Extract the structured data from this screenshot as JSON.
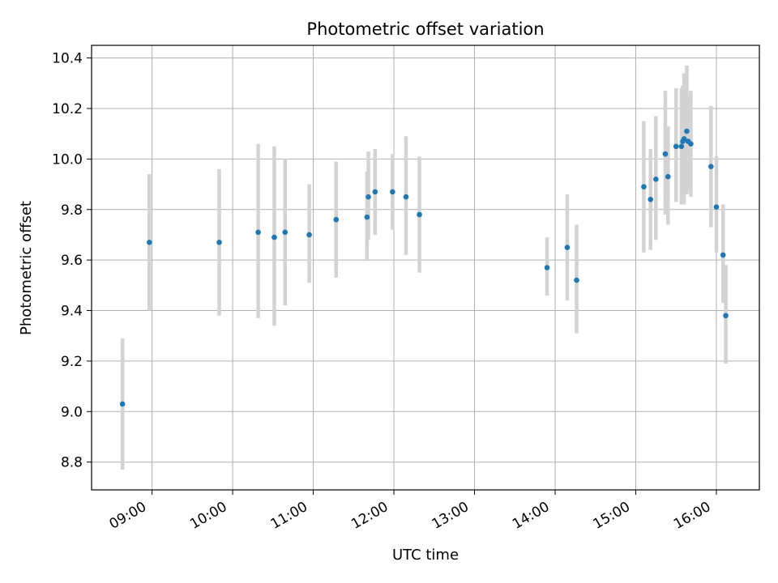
{
  "chart_data": {
    "type": "scatter",
    "title": "Photometric offset variation",
    "xlabel": "UTC time",
    "ylabel": "Photometric offset",
    "x_axis": "time",
    "xlim": [
      "08:15",
      "16:32"
    ],
    "ylim": [
      8.69,
      10.45
    ],
    "x_ticks": [
      "09:00",
      "10:00",
      "11:00",
      "12:00",
      "13:00",
      "14:00",
      "15:00",
      "16:00"
    ],
    "y_ticks": [
      8.8,
      9.0,
      9.2,
      9.4,
      9.6,
      9.8,
      10.0,
      10.2,
      10.4
    ],
    "grid": true,
    "marker_color": "#1f77b4",
    "errorbar_color": "#d3d3d3",
    "points": [
      {
        "x": "08:38",
        "y": 9.03,
        "ylow": 8.77,
        "yhigh": 9.29
      },
      {
        "x": "08:58",
        "y": 9.67,
        "ylow": 9.4,
        "yhigh": 9.94
      },
      {
        "x": "09:50",
        "y": 9.67,
        "ylow": 9.38,
        "yhigh": 9.96
      },
      {
        "x": "10:19",
        "y": 9.71,
        "ylow": 9.37,
        "yhigh": 10.06
      },
      {
        "x": "10:31",
        "y": 9.69,
        "ylow": 9.34,
        "yhigh": 10.05
      },
      {
        "x": "10:39",
        "y": 9.71,
        "ylow": 9.42,
        "yhigh": 10.0
      },
      {
        "x": "10:57",
        "y": 9.7,
        "ylow": 9.51,
        "yhigh": 9.9
      },
      {
        "x": "11:17",
        "y": 9.76,
        "ylow": 9.53,
        "yhigh": 9.99
      },
      {
        "x": "11:40",
        "y": 9.77,
        "ylow": 9.6,
        "yhigh": 9.95
      },
      {
        "x": "11:41",
        "y": 9.85,
        "ylow": 9.68,
        "yhigh": 10.03
      },
      {
        "x": "11:46",
        "y": 9.87,
        "ylow": 9.7,
        "yhigh": 10.04
      },
      {
        "x": "11:59",
        "y": 9.87,
        "ylow": 9.72,
        "yhigh": 10.02
      },
      {
        "x": "12:09",
        "y": 9.85,
        "ylow": 9.62,
        "yhigh": 10.09
      },
      {
        "x": "12:19",
        "y": 9.78,
        "ylow": 9.55,
        "yhigh": 10.01
      },
      {
        "x": "13:54",
        "y": 9.57,
        "ylow": 9.46,
        "yhigh": 9.69
      },
      {
        "x": "14:09",
        "y": 9.65,
        "ylow": 9.44,
        "yhigh": 9.86
      },
      {
        "x": "14:16",
        "y": 9.52,
        "ylow": 9.31,
        "yhigh": 9.74
      },
      {
        "x": "15:06",
        "y": 9.89,
        "ylow": 9.63,
        "yhigh": 10.15
      },
      {
        "x": "15:11",
        "y": 9.84,
        "ylow": 9.64,
        "yhigh": 10.04
      },
      {
        "x": "15:15",
        "y": 9.92,
        "ylow": 9.68,
        "yhigh": 10.17
      },
      {
        "x": "15:22",
        "y": 10.02,
        "ylow": 9.78,
        "yhigh": 10.27
      },
      {
        "x": "15:24",
        "y": 9.93,
        "ylow": 9.74,
        "yhigh": 10.13
      },
      {
        "x": "15:30",
        "y": 10.05,
        "ylow": 9.83,
        "yhigh": 10.28
      },
      {
        "x": "15:34",
        "y": 10.05,
        "ylow": 9.82,
        "yhigh": 10.28
      },
      {
        "x": "15:35",
        "y": 10.07,
        "ylow": 9.86,
        "yhigh": 10.29
      },
      {
        "x": "15:36",
        "y": 10.08,
        "ylow": 9.82,
        "yhigh": 10.34
      },
      {
        "x": "15:38",
        "y": 10.11,
        "ylow": 9.86,
        "yhigh": 10.37
      },
      {
        "x": "15:39",
        "y": 10.07,
        "ylow": 9.88,
        "yhigh": 10.25
      },
      {
        "x": "15:41",
        "y": 10.06,
        "ylow": 9.85,
        "yhigh": 10.27
      },
      {
        "x": "15:56",
        "y": 9.97,
        "ylow": 9.73,
        "yhigh": 10.21
      },
      {
        "x": "16:00",
        "y": 9.81,
        "ylow": 9.63,
        "yhigh": 10.01
      },
      {
        "x": "16:05",
        "y": 9.62,
        "ylow": 9.43,
        "yhigh": 9.82
      },
      {
        "x": "16:07",
        "y": 9.38,
        "ylow": 9.19,
        "yhigh": 9.58
      }
    ]
  }
}
